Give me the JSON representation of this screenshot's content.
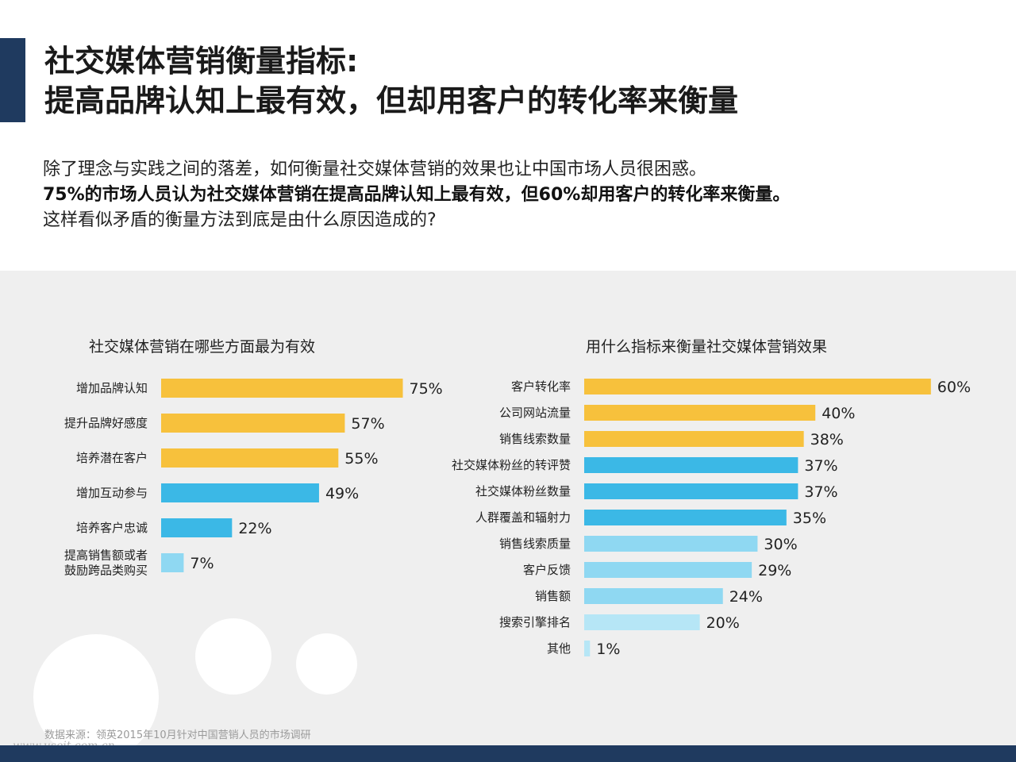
{
  "header": {
    "title_line1": "社交媒体营销衡量指标:",
    "title_line2": "提高品牌认知上最有效，但却用客户的转化率来衡量"
  },
  "intro": {
    "line1": "除了理念与实践之间的落差，如何衡量社交媒体营销的效果也让中国市场人员很困惑。",
    "line2": "75%的市场人员认为社交媒体营销在提高品牌认知上最有效，但60%却用客户的转化率来衡量。",
    "line3": "这样看似矛盾的衡量方法到底是由什么原因造成的?"
  },
  "chart_data": [
    {
      "type": "bar",
      "orientation": "horizontal",
      "title": "社交媒体营销在哪些方面最为有效",
      "categories": [
        "增加品牌认知",
        "提升品牌好感度",
        "培养潜在客户",
        "增加互动参与",
        "培养客户忠诚",
        "提高销售额或者\n鼓励跨品类购买"
      ],
      "values": [
        75,
        57,
        55,
        49,
        22,
        7
      ],
      "labels": [
        "75%",
        "57%",
        "55%",
        "49%",
        "22%",
        "7%"
      ],
      "colors": [
        "#f7c13c",
        "#f7c13c",
        "#f7c13c",
        "#3bb8e6",
        "#3bb8e6",
        "#8fd8f2"
      ]
    },
    {
      "type": "bar",
      "orientation": "horizontal",
      "title": "用什么指标来衡量社交媒体营销效果",
      "categories": [
        "客户转化率",
        "公司网站流量",
        "销售线索数量",
        "社交媒体粉丝的转评赞",
        "社交媒体粉丝数量",
        "人群覆盖和辐射力",
        "销售线索质量",
        "客户反馈",
        "销售额",
        "搜索引擎排名",
        "其他"
      ],
      "values": [
        60,
        40,
        38,
        37,
        37,
        35,
        30,
        29,
        24,
        20,
        1
      ],
      "labels": [
        "60%",
        "40%",
        "38%",
        "37%",
        "37%",
        "35%",
        "30%",
        "29%",
        "24%",
        "20%",
        "1%"
      ],
      "colors": [
        "#f7c13c",
        "#f7c13c",
        "#f7c13c",
        "#3bb8e6",
        "#3bb8e6",
        "#3bb8e6",
        "#8fd8f2",
        "#8fd8f2",
        "#8fd8f2",
        "#b6e6f6",
        "#b6e6f6"
      ]
    }
  ],
  "source": "数据来源：领英2015年10月针对中国营销人员的市场调研",
  "watermark": "www.useit.com.cn",
  "colors": {
    "accent": "#1f3a5f",
    "panel": "#efefef"
  }
}
